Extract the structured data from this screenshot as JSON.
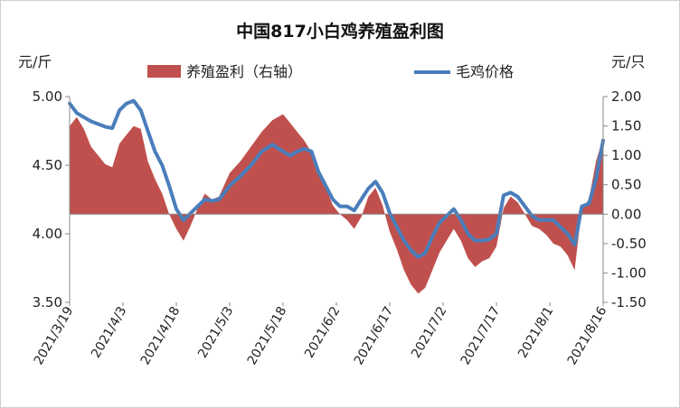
{
  "chart_data": {
    "type": "area+line",
    "title": "中国817小白鸡养殖盈利图",
    "left_unit": "元/斤",
    "right_unit": "元/只",
    "legend": {
      "placement": "top",
      "area_label": "养殖盈利（右轴）",
      "line_label": "毛鸡价格"
    },
    "colors": {
      "area": "#c0504d",
      "line": "#4a7ebb",
      "axis": "#888888"
    },
    "left_axis": {
      "min": 3.5,
      "max": 5.0,
      "ticks": [
        "3.50",
        "4.00",
        "4.50",
        "5.00"
      ]
    },
    "right_axis": {
      "min": -1.5,
      "max": 2.0,
      "ticks": [
        "-1.50",
        "-1.00",
        "-0.50",
        "0.00",
        "0.50",
        "1.00",
        "1.50",
        "2.00"
      ]
    },
    "x_labels": [
      "2021/3/19",
      "2021/4/3",
      "2021/4/18",
      "2021/5/3",
      "2021/5/18",
      "2021/6/2",
      "2021/6/17",
      "2021/7/2",
      "2021/7/17",
      "2021/8/1",
      "2021/8/16"
    ],
    "x_start": "2021/3/19",
    "x_end": "2021/8/16",
    "profit_series": {
      "name": "养殖盈利（右轴）",
      "points": [
        [
          "2021/3/19",
          1.5
        ],
        [
          "2021/3/21",
          1.65
        ],
        [
          "2021/3/23",
          1.45
        ],
        [
          "2021/3/25",
          1.15
        ],
        [
          "2021/3/27",
          1.0
        ],
        [
          "2021/3/29",
          0.85
        ],
        [
          "2021/3/31",
          0.8
        ],
        [
          "2021/4/2",
          1.2
        ],
        [
          "2021/4/4",
          1.35
        ],
        [
          "2021/4/6",
          1.5
        ],
        [
          "2021/4/8",
          1.45
        ],
        [
          "2021/4/10",
          0.9
        ],
        [
          "2021/4/12",
          0.6
        ],
        [
          "2021/4/14",
          0.35
        ],
        [
          "2021/4/16",
          0.0
        ],
        [
          "2021/4/18",
          -0.25
        ],
        [
          "2021/4/20",
          -0.45
        ],
        [
          "2021/4/22",
          -0.2
        ],
        [
          "2021/4/24",
          0.1
        ],
        [
          "2021/4/26",
          0.35
        ],
        [
          "2021/4/28",
          0.25
        ],
        [
          "2021/4/30",
          0.3
        ],
        [
          "2021/5/3",
          0.7
        ],
        [
          "2021/5/6",
          0.9
        ],
        [
          "2021/5/9",
          1.15
        ],
        [
          "2021/5/12",
          1.4
        ],
        [
          "2021/5/15",
          1.6
        ],
        [
          "2021/5/18",
          1.7
        ],
        [
          "2021/5/20",
          1.55
        ],
        [
          "2021/5/22",
          1.4
        ],
        [
          "2021/5/24",
          1.25
        ],
        [
          "2021/5/26",
          1.05
        ],
        [
          "2021/5/28",
          0.7
        ],
        [
          "2021/5/30",
          0.45
        ],
        [
          "2021/6/1",
          0.15
        ],
        [
          "2021/6/3",
          0.0
        ],
        [
          "2021/6/5",
          -0.1
        ],
        [
          "2021/6/7",
          -0.25
        ],
        [
          "2021/6/9",
          -0.05
        ],
        [
          "2021/6/11",
          0.3
        ],
        [
          "2021/6/13",
          0.45
        ],
        [
          "2021/6/15",
          0.15
        ],
        [
          "2021/6/17",
          -0.3
        ],
        [
          "2021/6/19",
          -0.6
        ],
        [
          "2021/6/21",
          -0.95
        ],
        [
          "2021/6/23",
          -1.2
        ],
        [
          "2021/6/25",
          -1.35
        ],
        [
          "2021/6/27",
          -1.25
        ],
        [
          "2021/6/29",
          -0.95
        ],
        [
          "2021/7/1",
          -0.65
        ],
        [
          "2021/7/3",
          -0.45
        ],
        [
          "2021/7/5",
          -0.25
        ],
        [
          "2021/7/7",
          -0.45
        ],
        [
          "2021/7/9",
          -0.75
        ],
        [
          "2021/7/11",
          -0.9
        ],
        [
          "2021/7/13",
          -0.8
        ],
        [
          "2021/7/15",
          -0.75
        ],
        [
          "2021/7/17",
          -0.55
        ],
        [
          "2021/7/19",
          0.1
        ],
        [
          "2021/7/21",
          0.3
        ],
        [
          "2021/7/23",
          0.2
        ],
        [
          "2021/7/25",
          0.0
        ],
        [
          "2021/7/27",
          -0.2
        ],
        [
          "2021/7/29",
          -0.25
        ],
        [
          "2021/7/31",
          -0.35
        ],
        [
          "2021/8/2",
          -0.5
        ],
        [
          "2021/8/4",
          -0.55
        ],
        [
          "2021/8/6",
          -0.7
        ],
        [
          "2021/8/8",
          -0.95
        ],
        [
          "2021/8/10",
          0.1
        ],
        [
          "2021/8/12",
          0.25
        ],
        [
          "2021/8/14",
          0.9
        ],
        [
          "2021/8/16",
          1.3
        ]
      ]
    },
    "price_series": {
      "name": "毛鸡价格",
      "points": [
        [
          "2021/3/19",
          4.95
        ],
        [
          "2021/3/21",
          4.88
        ],
        [
          "2021/3/23",
          4.85
        ],
        [
          "2021/3/25",
          4.82
        ],
        [
          "2021/3/27",
          4.8
        ],
        [
          "2021/3/29",
          4.78
        ],
        [
          "2021/3/31",
          4.77
        ],
        [
          "2021/4/2",
          4.9
        ],
        [
          "2021/4/4",
          4.95
        ],
        [
          "2021/4/6",
          4.97
        ],
        [
          "2021/4/8",
          4.9
        ],
        [
          "2021/4/10",
          4.75
        ],
        [
          "2021/4/12",
          4.6
        ],
        [
          "2021/4/14",
          4.5
        ],
        [
          "2021/4/16",
          4.35
        ],
        [
          "2021/4/18",
          4.18
        ],
        [
          "2021/4/20",
          4.1
        ],
        [
          "2021/4/22",
          4.15
        ],
        [
          "2021/4/24",
          4.2
        ],
        [
          "2021/4/26",
          4.25
        ],
        [
          "2021/4/28",
          4.24
        ],
        [
          "2021/4/30",
          4.25
        ],
        [
          "2021/5/3",
          4.35
        ],
        [
          "2021/5/6",
          4.42
        ],
        [
          "2021/5/9",
          4.5
        ],
        [
          "2021/5/12",
          4.6
        ],
        [
          "2021/5/15",
          4.65
        ],
        [
          "2021/5/18",
          4.6
        ],
        [
          "2021/5/20",
          4.57
        ],
        [
          "2021/5/22",
          4.6
        ],
        [
          "2021/5/24",
          4.62
        ],
        [
          "2021/5/26",
          4.6
        ],
        [
          "2021/5/28",
          4.45
        ],
        [
          "2021/5/30",
          4.35
        ],
        [
          "2021/6/1",
          4.25
        ],
        [
          "2021/6/3",
          4.2
        ],
        [
          "2021/6/5",
          4.2
        ],
        [
          "2021/6/7",
          4.17
        ],
        [
          "2021/6/9",
          4.25
        ],
        [
          "2021/6/11",
          4.33
        ],
        [
          "2021/6/13",
          4.38
        ],
        [
          "2021/6/15",
          4.3
        ],
        [
          "2021/6/17",
          4.15
        ],
        [
          "2021/6/19",
          4.05
        ],
        [
          "2021/6/21",
          3.95
        ],
        [
          "2021/6/23",
          3.88
        ],
        [
          "2021/6/25",
          3.83
        ],
        [
          "2021/6/27",
          3.86
        ],
        [
          "2021/6/29",
          3.98
        ],
        [
          "2021/7/1",
          4.08
        ],
        [
          "2021/7/3",
          4.13
        ],
        [
          "2021/7/5",
          4.18
        ],
        [
          "2021/7/7",
          4.1
        ],
        [
          "2021/7/9",
          4.0
        ],
        [
          "2021/7/11",
          3.95
        ],
        [
          "2021/7/13",
          3.95
        ],
        [
          "2021/7/15",
          3.96
        ],
        [
          "2021/7/17",
          4.0
        ],
        [
          "2021/7/19",
          4.28
        ],
        [
          "2021/7/21",
          4.3
        ],
        [
          "2021/7/23",
          4.27
        ],
        [
          "2021/7/25",
          4.2
        ],
        [
          "2021/7/27",
          4.13
        ],
        [
          "2021/7/29",
          4.1
        ],
        [
          "2021/7/31",
          4.1
        ],
        [
          "2021/8/2",
          4.1
        ],
        [
          "2021/8/4",
          4.05
        ],
        [
          "2021/8/6",
          4.0
        ],
        [
          "2021/8/8",
          3.92
        ],
        [
          "2021/8/10",
          4.2
        ],
        [
          "2021/8/12",
          4.22
        ],
        [
          "2021/8/14",
          4.4
        ],
        [
          "2021/8/16",
          4.68
        ]
      ]
    }
  }
}
